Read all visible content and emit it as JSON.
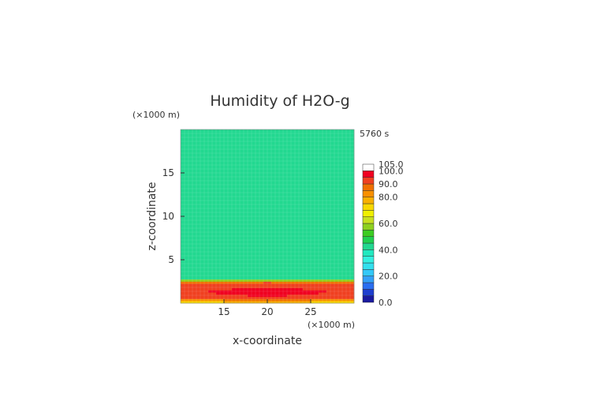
{
  "chart_data": {
    "type": "heatmap",
    "title": "Humidity of H2O-g",
    "xlabel": "x-coordinate",
    "ylabel": "z-coordinate",
    "x_unit": "(×1000 m)",
    "y_unit": "(×1000 m)",
    "time_label": "5760 s",
    "xlim": [
      10,
      30
    ],
    "ylim": [
      0,
      20
    ],
    "x_ticks": [
      15,
      20,
      25
    ],
    "y_ticks": [
      5,
      10,
      15
    ],
    "colorbar": {
      "levels": [
        0,
        5,
        10,
        15,
        20,
        25,
        30,
        35,
        40,
        45,
        50,
        55,
        60,
        65,
        70,
        75,
        80,
        85,
        90,
        95,
        100,
        105
      ],
      "colors": [
        "#1a1aa0",
        "#1f3fcf",
        "#2a6ef0",
        "#33a0f8",
        "#33c8f8",
        "#33e0ee",
        "#33f0e0",
        "#22e8c0",
        "#22d890",
        "#20d050",
        "#3ccc22",
        "#8ed020",
        "#c8e020",
        "#f0f000",
        "#f8d800",
        "#f8b000",
        "#f89000",
        "#f07000",
        "#f04020",
        "#f00020",
        "#ffffff"
      ],
      "tick_labels": [
        "0.0",
        "20.0",
        "40.0",
        "60.0",
        "80.0",
        "90.0",
        "100.0",
        "105.0"
      ],
      "tick_values": [
        0,
        20,
        40,
        60,
        80,
        90,
        100,
        105
      ]
    },
    "field_description_values": {
      "upper_layer_humidity": 43,
      "boundary_layer_top_km": 2.6,
      "core_max_humidity": 100,
      "surface_humidity": 70
    }
  }
}
